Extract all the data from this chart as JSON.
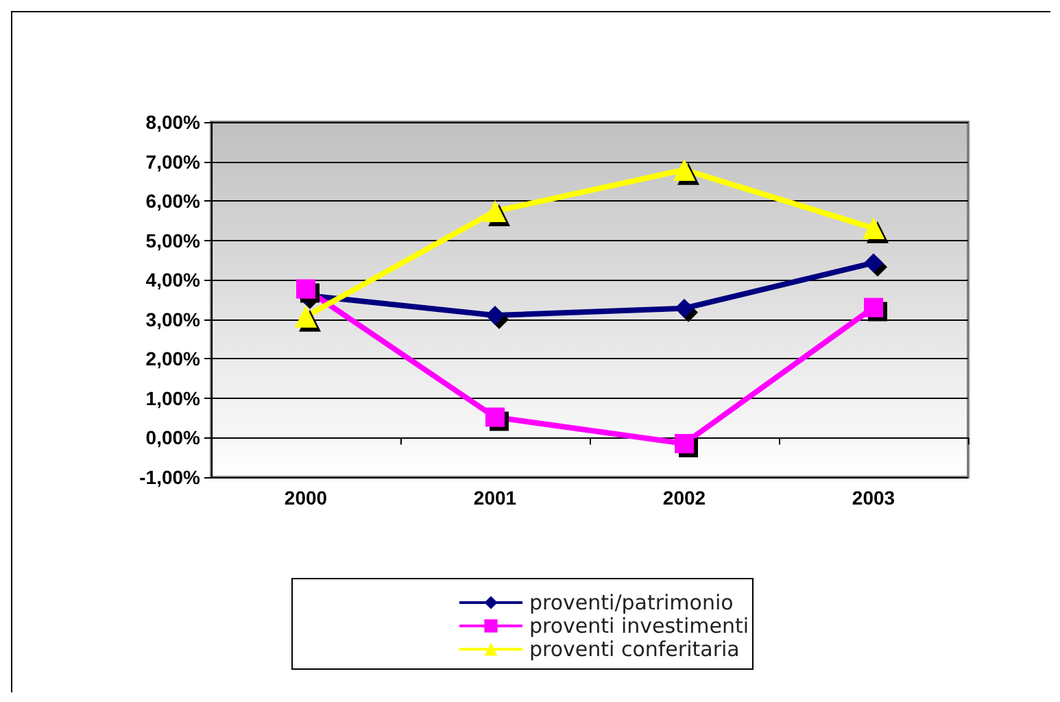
{
  "chart_data": {
    "type": "line",
    "categories": [
      "2000",
      "2001",
      "2002",
      "2003"
    ],
    "series": [
      {
        "name": "proventi/patrimonio",
        "color": "#000080",
        "marker": "diamond",
        "values": [
          3.61,
          3.1,
          3.28,
          4.43
        ]
      },
      {
        "name": "proventi investimenti",
        "color": "#ff00ff",
        "marker": "square",
        "values": [
          3.77,
          0.52,
          -0.15,
          3.3
        ]
      },
      {
        "name": "proventi conferitaria",
        "color": "#ffff00",
        "marker": "triangle",
        "values": [
          3.07,
          5.74,
          6.79,
          5.31
        ]
      }
    ],
    "ylim": [
      -1,
      8
    ],
    "yticks": [
      {
        "value": -1,
        "label": "-1,00%"
      },
      {
        "value": 0,
        "label": "0,00%"
      },
      {
        "value": 1,
        "label": "1,00%"
      },
      {
        "value": 2,
        "label": "2,00%"
      },
      {
        "value": 3,
        "label": "3,00%"
      },
      {
        "value": 4,
        "label": "4,00%"
      },
      {
        "value": 5,
        "label": "5,00%"
      },
      {
        "value": 6,
        "label": "6,00%"
      },
      {
        "value": 7,
        "label": "7,00%"
      },
      {
        "value": 8,
        "label": "8,00%"
      }
    ],
    "grid": "y",
    "legend": "bottom"
  }
}
